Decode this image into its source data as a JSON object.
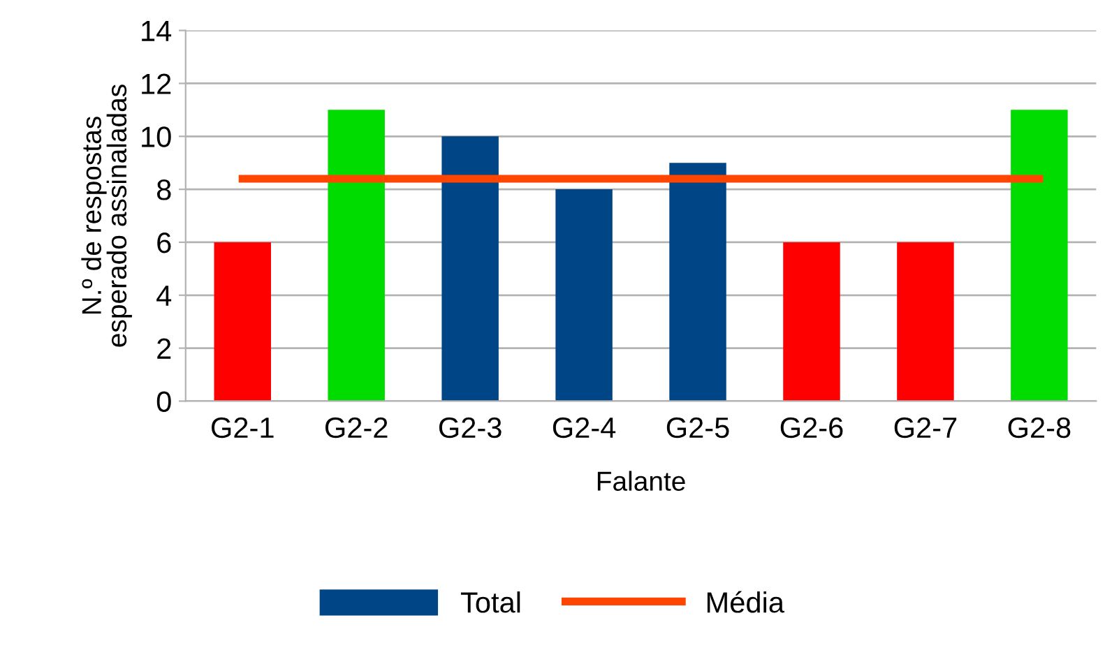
{
  "chart_data": {
    "type": "bar",
    "xlabel": "Falante",
    "ylabel": "N.º de respostas\nesperado assinaladas",
    "categories": [
      "G2-1",
      "G2-2",
      "G2-3",
      "G2-4",
      "G2-5",
      "G2-6",
      "G2-7",
      "G2-8"
    ],
    "series": [
      {
        "name": "Total",
        "color": "#004586",
        "colors": [
          "#ff0000",
          "#00dc00",
          "#004586",
          "#004586",
          "#004586",
          "#ff0000",
          "#ff0000",
          "#00dc00"
        ],
        "values": [
          6,
          11,
          10,
          8,
          9,
          6,
          6,
          11
        ]
      },
      {
        "name": "Média",
        "type": "line",
        "color": "#ff4500",
        "values": [
          8.4,
          8.4,
          8.4,
          8.4,
          8.4,
          8.4,
          8.4,
          8.4
        ]
      }
    ],
    "ylim": [
      0,
      14
    ],
    "yticks": [
      0,
      2,
      4,
      6,
      8,
      10,
      12,
      14
    ],
    "grid": "y",
    "legend": "bottom"
  }
}
